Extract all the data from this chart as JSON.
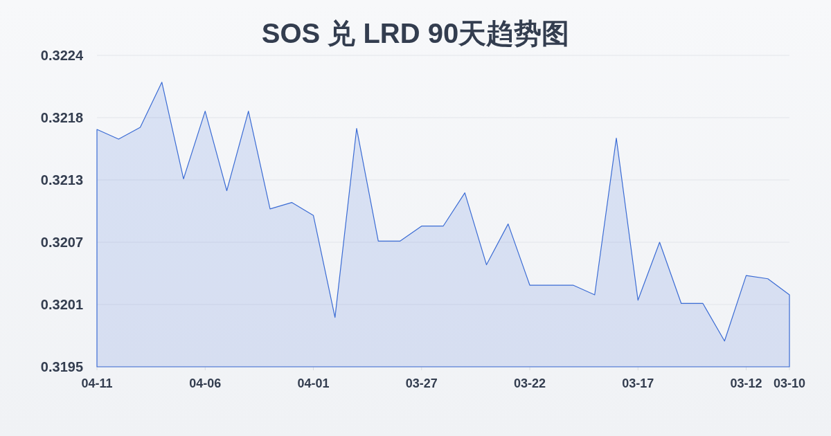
{
  "chart_data": {
    "type": "area",
    "title": "SOS 兑 LRD 90天趋势图",
    "categories": [
      "04-11",
      null,
      null,
      null,
      null,
      "04-06",
      null,
      null,
      null,
      null,
      "04-01",
      null,
      null,
      null,
      null,
      "03-27",
      null,
      null,
      null,
      null,
      "03-22",
      null,
      null,
      null,
      null,
      "03-17",
      null,
      null,
      null,
      null,
      "03-12",
      null,
      "03-10"
    ],
    "series": [
      {
        "color": "#3a6bd4",
        "values": [
          0.32173,
          0.32164,
          0.32175,
          0.32217,
          0.32127,
          0.3219,
          0.32116,
          0.3219,
          0.32099,
          0.32105,
          0.32093,
          0.31998,
          0.32174,
          0.32069,
          0.32069,
          0.32083,
          0.32083,
          0.32114,
          0.32047,
          0.32085,
          0.32028,
          0.32028,
          0.32028,
          0.32019,
          0.32165,
          0.32014,
          0.32068,
          0.32011,
          0.32011,
          0.31976,
          0.32037,
          0.32034,
          0.32019
        ]
      }
    ],
    "ylim": [
      0.31952,
      0.32242
    ],
    "yticks": [
      {
        "value": 0.31952,
        "label": "0.3195"
      },
      0.3201,
      {
        "value": 0.32068,
        "label": "0.3207"
      },
      {
        "value": 0.32126,
        "label": "0.3213"
      },
      {
        "value": 0.32184,
        "label": "0.3218"
      },
      {
        "value": 0.32242,
        "label": "0.3224"
      }
    ],
    "grid": "y"
  }
}
